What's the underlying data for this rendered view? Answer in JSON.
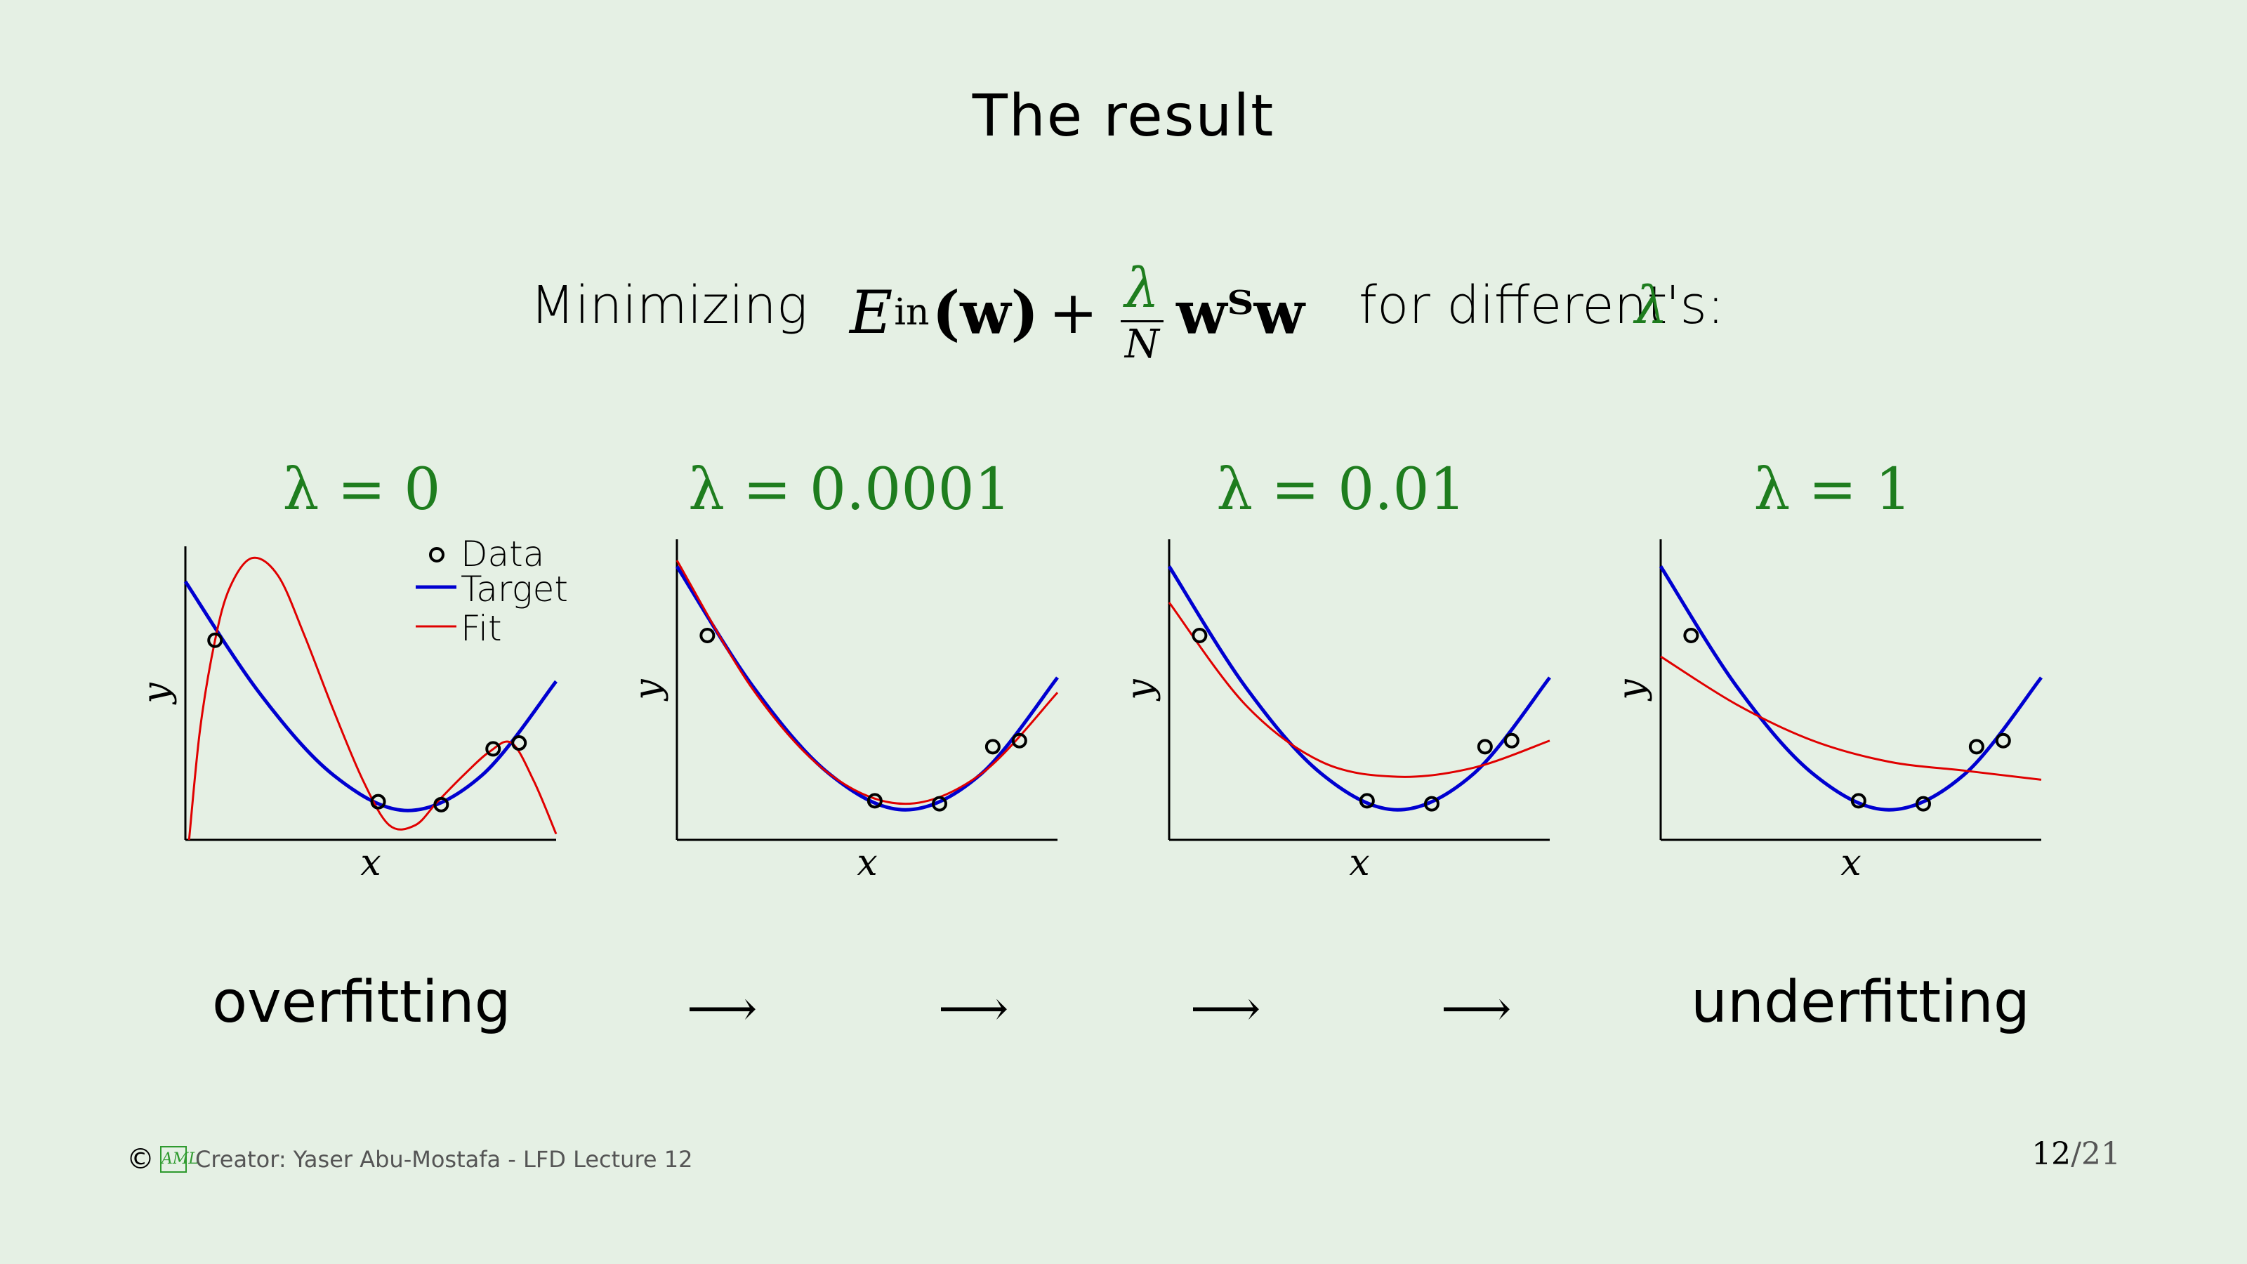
{
  "slide": {
    "title": "The result",
    "subtitle_pre": "Minimizing",
    "subtitle_post": "for different",
    "subtitle_lambda": "λ",
    "subtitle_end": "'s:",
    "formula": {
      "E": "E",
      "sub": "in",
      "arg": "(w)",
      "plus": "+",
      "num": "λ",
      "den": "N",
      "reg": "wᵀw"
    }
  },
  "panels": [
    {
      "label": "λ = 0"
    },
    {
      "label": "λ = 0.0001"
    },
    {
      "label": "λ = 0.01"
    },
    {
      "label": "λ = 1"
    }
  ],
  "axes": {
    "xlabel": "x",
    "ylabel": "y"
  },
  "legend": {
    "data": "Data",
    "target": "Target",
    "fit": "Fit"
  },
  "colors": {
    "target": "#0000d0",
    "fit": "#e00000",
    "lambda": "#1e7d1e",
    "background": "#e5f0e4"
  },
  "bottom": {
    "left": "overfitting",
    "right": "underfitting",
    "arrow": "⟶"
  },
  "footer": {
    "copyright": "©",
    "logo": "AML",
    "creator": "Creator:  Yaser Abu-Mostafa - LFD Lecture 12"
  },
  "page": {
    "current": "12",
    "total": "/21"
  },
  "chart_data": [
    {
      "type": "line",
      "title": "λ = 0",
      "xlabel": "x",
      "ylabel": "y",
      "xlim": [
        0,
        1
      ],
      "ylim": [
        0,
        1
      ],
      "points": [
        [
          0.08,
          0.68
        ],
        [
          0.52,
          0.13
        ],
        [
          0.69,
          0.12
        ],
        [
          0.83,
          0.31
        ],
        [
          0.9,
          0.33
        ]
      ],
      "series": [
        {
          "name": "Target",
          "x": [
            0,
            0.2,
            0.4,
            0.6,
            0.8,
            1.0
          ],
          "y": [
            0.88,
            0.5,
            0.22,
            0.1,
            0.22,
            0.54
          ]
        },
        {
          "name": "Fit",
          "x": [
            0.01,
            0.04,
            0.08,
            0.12,
            0.18,
            0.25,
            0.32,
            0.4,
            0.48,
            0.55,
            0.62,
            0.68,
            0.75,
            0.82,
            0.88,
            0.94,
            1.0
          ],
          "y": [
            0.0,
            0.38,
            0.68,
            0.86,
            0.96,
            0.9,
            0.7,
            0.44,
            0.2,
            0.05,
            0.05,
            0.13,
            0.22,
            0.3,
            0.33,
            0.2,
            0.02
          ]
        }
      ],
      "legend": "top-right"
    },
    {
      "type": "line",
      "title": "λ = 0.0001",
      "xlabel": "x",
      "ylabel": "y",
      "xlim": [
        0,
        1
      ],
      "ylim": [
        0,
        1
      ],
      "points": [
        [
          0.08,
          0.68
        ],
        [
          0.52,
          0.13
        ],
        [
          0.69,
          0.12
        ],
        [
          0.83,
          0.31
        ],
        [
          0.9,
          0.33
        ]
      ],
      "series": [
        {
          "name": "Target",
          "x": [
            0,
            0.2,
            0.4,
            0.6,
            0.8,
            1.0
          ],
          "y": [
            0.91,
            0.51,
            0.22,
            0.1,
            0.22,
            0.54
          ]
        },
        {
          "name": "Fit",
          "x": [
            0,
            0.2,
            0.4,
            0.6,
            0.8,
            1.0
          ],
          "y": [
            0.93,
            0.5,
            0.22,
            0.12,
            0.22,
            0.49
          ]
        }
      ]
    },
    {
      "type": "line",
      "title": "λ = 0.01",
      "xlabel": "x",
      "ylabel": "y",
      "xlim": [
        0,
        1
      ],
      "ylim": [
        0,
        1
      ],
      "points": [
        [
          0.08,
          0.68
        ],
        [
          0.52,
          0.13
        ],
        [
          0.69,
          0.12
        ],
        [
          0.83,
          0.31
        ],
        [
          0.9,
          0.33
        ]
      ],
      "series": [
        {
          "name": "Target",
          "x": [
            0,
            0.2,
            0.4,
            0.6,
            0.8,
            1.0
          ],
          "y": [
            0.91,
            0.51,
            0.22,
            0.1,
            0.22,
            0.54
          ]
        },
        {
          "name": "Fit",
          "x": [
            0,
            0.2,
            0.4,
            0.6,
            0.8,
            1.0
          ],
          "y": [
            0.79,
            0.45,
            0.26,
            0.21,
            0.24,
            0.33
          ]
        }
      ]
    },
    {
      "type": "line",
      "title": "λ = 1",
      "xlabel": "x",
      "ylabel": "y",
      "xlim": [
        0,
        1
      ],
      "ylim": [
        0,
        1
      ],
      "points": [
        [
          0.08,
          0.68
        ],
        [
          0.52,
          0.13
        ],
        [
          0.69,
          0.12
        ],
        [
          0.83,
          0.31
        ],
        [
          0.9,
          0.33
        ]
      ],
      "series": [
        {
          "name": "Target",
          "x": [
            0,
            0.2,
            0.4,
            0.6,
            0.8,
            1.0
          ],
          "y": [
            0.91,
            0.51,
            0.22,
            0.1,
            0.22,
            0.54
          ]
        },
        {
          "name": "Fit",
          "x": [
            0,
            0.2,
            0.4,
            0.6,
            0.8,
            1.0
          ],
          "y": [
            0.61,
            0.45,
            0.33,
            0.26,
            0.23,
            0.2
          ]
        }
      ]
    }
  ]
}
